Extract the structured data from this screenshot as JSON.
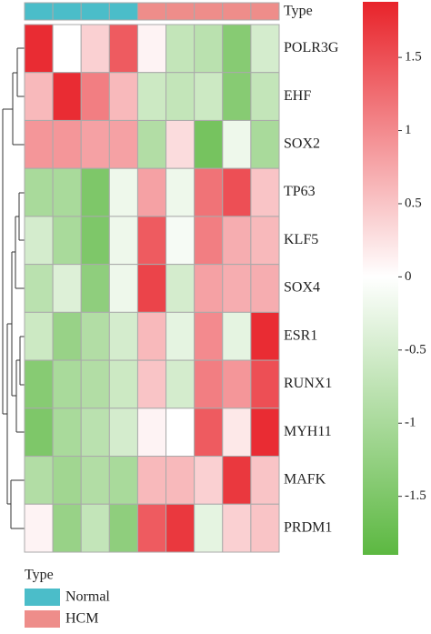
{
  "chart_data": {
    "type": "heatmap",
    "rows": [
      "POLR3G",
      "EHF",
      "SOX2",
      "TP63",
      "KLF5",
      "SOX4",
      "ESR1",
      "RUNX1",
      "MYH11",
      "MAFK",
      "PRDM1"
    ],
    "values": [
      [
        1.8,
        0,
        0.4,
        1.4,
        0.1,
        -0.7,
        -0.8,
        -1.4,
        -0.5
      ],
      [
        0.6,
        1.8,
        1.1,
        0.6,
        -0.6,
        -0.7,
        -0.6,
        -1.4,
        -0.7
      ],
      [
        0.9,
        0.9,
        0.8,
        0.8,
        -0.9,
        0.3,
        -1.6,
        -0.2,
        -1.0
      ],
      [
        -1.0,
        -1.0,
        -1.5,
        -0.2,
        0.8,
        -0.2,
        1.2,
        1.5,
        0.5
      ],
      [
        -0.5,
        -1.0,
        -1.5,
        -0.2,
        1.4,
        -0.1,
        1.1,
        0.7,
        0.6
      ],
      [
        -0.8,
        -0.4,
        -1.3,
        -0.2,
        1.6,
        -0.5,
        0.8,
        0.7,
        0.7
      ],
      [
        -0.6,
        -1.2,
        -0.9,
        -0.5,
        0.6,
        -0.3,
        1.0,
        -0.3,
        1.8
      ],
      [
        -1.4,
        -1.0,
        -0.9,
        -0.6,
        0.5,
        -0.5,
        1.1,
        0.9,
        1.5
      ],
      [
        -1.5,
        -1.0,
        -0.8,
        -0.5,
        0.1,
        0.0,
        1.4,
        0.2,
        1.8
      ],
      [
        -0.9,
        -1.1,
        -0.9,
        -1.0,
        0.6,
        0.6,
        0.4,
        1.7,
        0.5
      ],
      [
        0.1,
        -1.2,
        -0.7,
        -1.3,
        1.4,
        1.7,
        -0.3,
        0.4,
        0.5
      ]
    ],
    "colors": {
      "low": "#5cb841",
      "mid": "#ffffff",
      "high": "#e8232a"
    },
    "clim": [
      -1.9,
      1.88
    ],
    "cticks": [
      1.5,
      1,
      0.5,
      0,
      -0.5,
      -1,
      -1.5
    ],
    "annotation": {
      "title": "Type",
      "columns": [
        "Normal",
        "Normal",
        "Normal",
        "Normal",
        "HCM",
        "HCM",
        "HCM",
        "HCM",
        "HCM"
      ],
      "legend_title": "Type",
      "legend": [
        {
          "name": "Normal",
          "color": "#4bbdc9"
        },
        {
          "name": "HCM",
          "color": "#ee8d8a"
        }
      ]
    }
  }
}
